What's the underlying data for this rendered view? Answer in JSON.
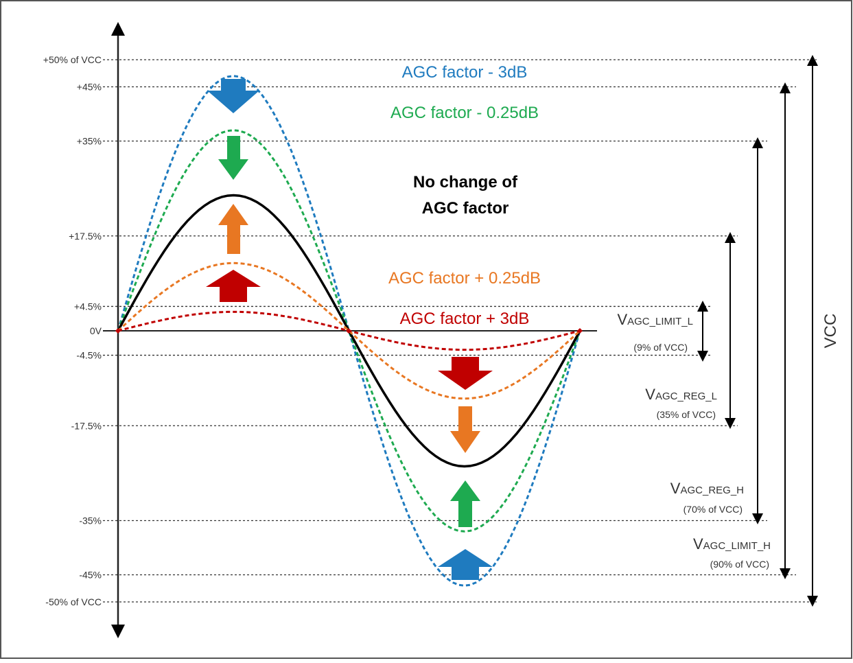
{
  "levels": [
    {
      "label": "+50% of VCC",
      "value": 50
    },
    {
      "label": "+45%",
      "value": 45
    },
    {
      "label": "+35%",
      "value": 35
    },
    {
      "label": "+17.5%",
      "value": 17.5
    },
    {
      "label": "+4.5%",
      "value": 4.5
    },
    {
      "label": "0V",
      "value": 0
    },
    {
      "label": "-4.5%",
      "value": -4.5
    },
    {
      "label": "-17.5%",
      "value": -17.5
    },
    {
      "label": "-35%",
      "value": -35
    },
    {
      "label": "-45%",
      "value": -45
    },
    {
      "label": "-50% of VCC",
      "value": -50
    }
  ],
  "curves": [
    {
      "name": "agc-minus-3db",
      "amplitude_pct": 47,
      "color": "#1f7bbf",
      "style": "dashed"
    },
    {
      "name": "agc-minus-025db",
      "amplitude_pct": 37,
      "color": "#1eaa50",
      "style": "dashed"
    },
    {
      "name": "no-change",
      "amplitude_pct": 25,
      "color": "#000000",
      "style": "solid"
    },
    {
      "name": "agc-plus-025db",
      "amplitude_pct": 12.5,
      "color": "#e87722",
      "style": "dashed"
    },
    {
      "name": "agc-plus-3db",
      "amplitude_pct": 3.5,
      "color": "#c00000",
      "style": "dashed"
    }
  ],
  "labels": {
    "minus_3db": "AGC factor - 3dB",
    "minus_025db": "AGC factor - 0.25dB",
    "no_change_line1": "No change of",
    "no_change_line2": "AGC factor",
    "plus_025db": "AGC factor + 0.25dB",
    "plus_3db": "AGC factor + 3dB"
  },
  "dimensions": {
    "limit_l": {
      "main": "V",
      "sub": "AGC_LIMIT_L",
      "note": "(9% of VCC)"
    },
    "reg_l": {
      "main": "V",
      "sub": "AGC_REG_L",
      "note": "(35% of VCC)"
    },
    "reg_h": {
      "main": "V",
      "sub": "AGC_REG_H",
      "note": "(70% of VCC)"
    },
    "limit_h": {
      "main": "V",
      "sub": "AGC_LIMIT_H",
      "note": "(90% of VCC)"
    },
    "vcc": "VCC"
  },
  "colors": {
    "blue": "#1f7bbf",
    "green": "#1eaa50",
    "orange": "#e87722",
    "red": "#c00000",
    "black": "#000000"
  }
}
